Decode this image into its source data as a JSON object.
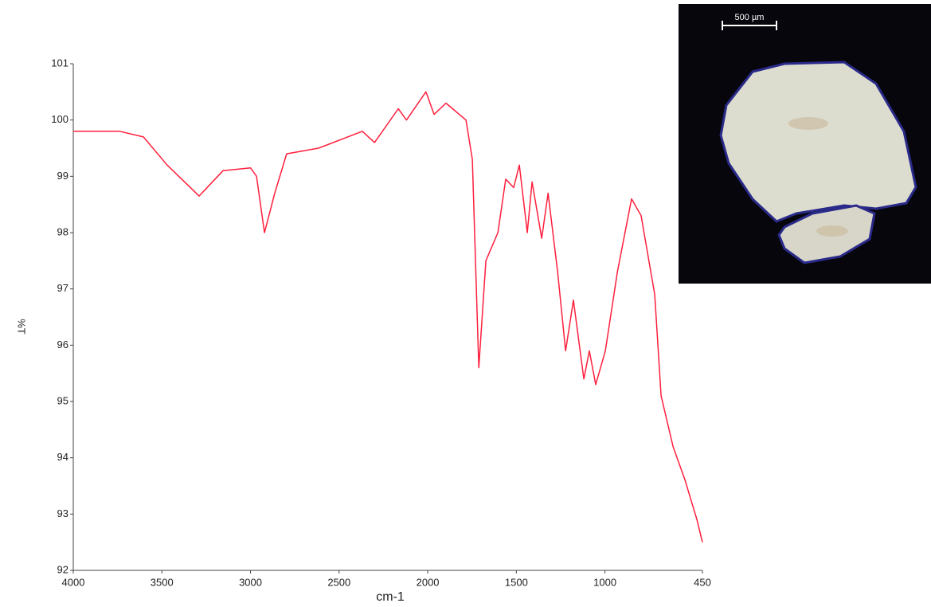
{
  "chart_data": {
    "type": "line",
    "x_label": "cm-1",
    "y_label": "%T",
    "x": [
      4000,
      3739,
      3604,
      3470,
      3290,
      3155,
      3000,
      2966,
      2921,
      2863,
      2796,
      2616,
      2369,
      2300,
      2166,
      2120,
      2010,
      1964,
      1897,
      1784,
      1748,
      1712,
      1672,
      1604,
      1560,
      1515,
      1483,
      1438,
      1411,
      1357,
      1321,
      1267,
      1222,
      1178,
      1119,
      1088,
      1052,
      998,
      930,
      850,
      796,
      719,
      683,
      616,
      548,
      481,
      450
    ],
    "values": [
      99.8,
      99.8,
      99.7,
      99.2,
      98.65,
      99.1,
      99.15,
      99.0,
      98.0,
      98.7,
      99.4,
      99.5,
      99.8,
      99.6,
      100.2,
      100.0,
      100.5,
      100.1,
      100.3,
      100.0,
      99.3,
      95.6,
      97.5,
      98.0,
      98.95,
      98.8,
      99.2,
      98.0,
      98.9,
      97.9,
      98.7,
      97.3,
      95.9,
      96.8,
      95.4,
      95.9,
      95.3,
      95.9,
      97.3,
      98.6,
      98.3,
      96.9,
      95.1,
      94.2,
      93.6,
      92.9,
      92.5
    ],
    "color": "#ff1f3d",
    "xlim": [
      4000,
      450
    ],
    "ylim": [
      92,
      101
    ],
    "xticks": [
      4000,
      3500,
      3000,
      2500,
      2000,
      1500,
      1000,
      450
    ],
    "yticks": [
      92,
      93,
      94,
      95,
      96,
      97,
      98,
      99,
      100,
      101
    ]
  },
  "inset": {
    "scale_label": "500 µm"
  }
}
